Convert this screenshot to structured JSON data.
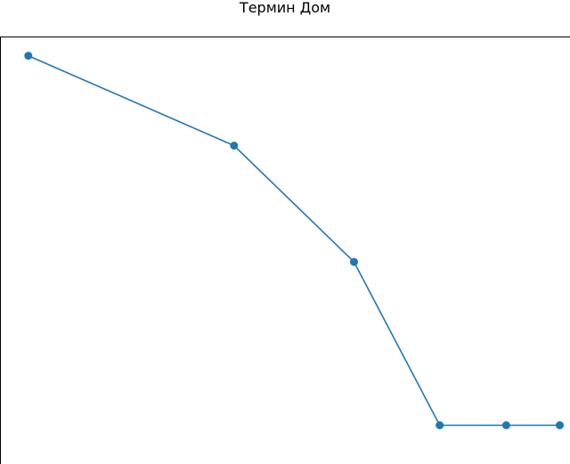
{
  "chart_data": {
    "type": "line",
    "title": "Термин Дом",
    "xlabel": "",
    "ylabel": "",
    "x": [
      1,
      4,
      5.75,
      7,
      7.97,
      8.75
    ],
    "series": [
      {
        "values": [
          100,
          78,
          49.5,
          9.5,
          9.5,
          9.5
        ],
        "color": "#1f77b4"
      }
    ],
    "xlim": [
      0.6,
      8.9
    ],
    "ylim": [
      0,
      104.5
    ],
    "grid": false,
    "axes_visible": false
  }
}
